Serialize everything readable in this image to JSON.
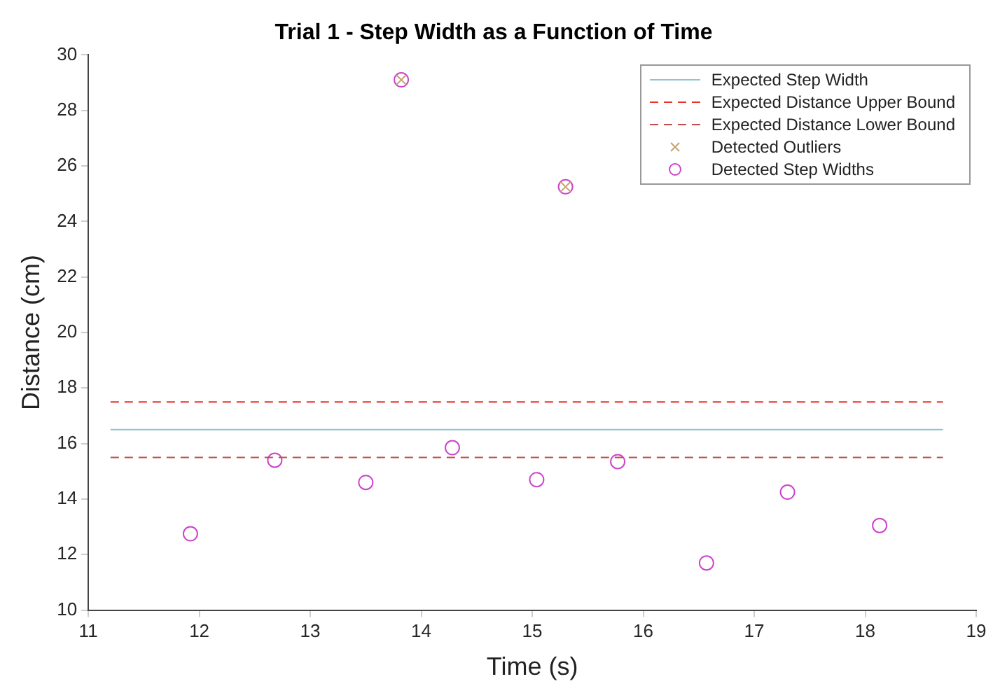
{
  "chart_data": {
    "type": "scatter",
    "title": "Trial 1 - Step Width as a Function of Time",
    "xlabel": "Time (s)",
    "ylabel": "Distance (cm)",
    "xlim": [
      11,
      19
    ],
    "xticks": [
      11,
      12,
      13,
      14,
      15,
      16,
      17,
      18,
      19
    ],
    "ylim": [
      10,
      30
    ],
    "yticks": [
      10,
      12,
      14,
      16,
      18,
      20,
      22,
      24,
      26,
      28,
      30
    ],
    "grid": false,
    "legend": "top right",
    "series": [
      {
        "name": "Expected Step Width",
        "type": "line",
        "color": "#8fc4cf",
        "x": [
          11.2,
          18.7
        ],
        "values": [
          16.5,
          16.5
        ],
        "marker": "none",
        "line_style": "solid"
      },
      {
        "name": "Expected Distance Upper Bound",
        "type": "line",
        "color": "#e8332a",
        "x": [
          11.2,
          18.7
        ],
        "values": [
          17.5,
          17.5
        ],
        "marker": "none",
        "line_style": "dashed"
      },
      {
        "name": "Expected Distance Lower Bound",
        "type": "line",
        "color": "#c0504d",
        "x": [
          11.2,
          18.7
        ],
        "values": [
          15.5,
          15.5
        ],
        "marker": "none",
        "line_style": "dashed"
      },
      {
        "name": "Detected Outliers",
        "type": "scatter",
        "color": "#c8a070",
        "x": [
          13.82,
          15.3
        ],
        "values": [
          29.1,
          25.25
        ],
        "marker": "cross"
      },
      {
        "name": "Detected Step Widths",
        "type": "scatter",
        "color": "#cc44cc",
        "x": [
          11.92,
          12.68,
          13.5,
          13.82,
          14.28,
          15.04,
          15.3,
          15.77,
          16.57,
          17.3,
          18.13
        ],
        "values": [
          12.75,
          15.4,
          14.6,
          29.1,
          15.85,
          14.7,
          25.25,
          15.35,
          11.7,
          14.25,
          13.05
        ],
        "marker": "circle"
      }
    ]
  }
}
